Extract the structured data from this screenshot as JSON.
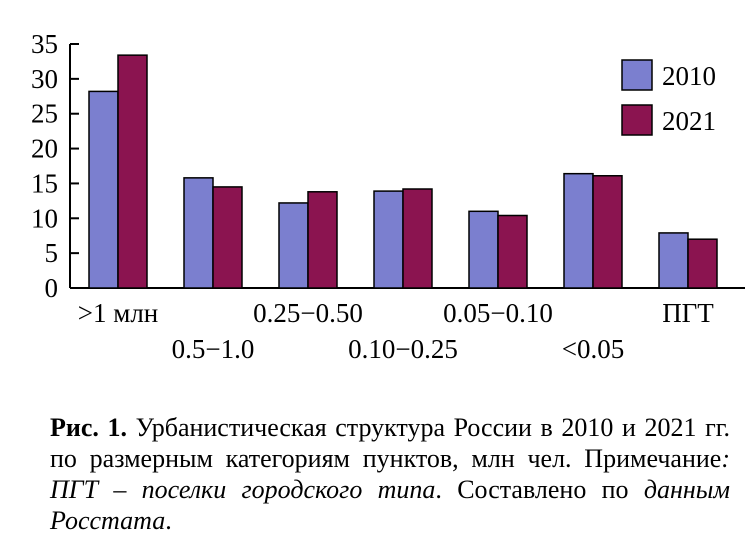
{
  "chart_data": {
    "type": "bar",
    "categories": [
      ">1 млн",
      "0.5−1.0",
      "0.25−0.50",
      "0.10−0.25",
      "0.05−0.10",
      "<0.05",
      "ПГТ"
    ],
    "series": [
      {
        "name": "2010",
        "values": [
          28.2,
          15.8,
          12.2,
          13.9,
          11.0,
          16.4,
          7.9
        ],
        "color": "#7b7fcf"
      },
      {
        "name": "2021",
        "values": [
          33.4,
          14.5,
          13.8,
          14.2,
          10.4,
          16.1,
          7.0
        ],
        "color": "#8b1450"
      }
    ],
    "yticks": [
      0,
      5,
      10,
      15,
      20,
      25,
      30,
      35
    ],
    "ylim": [
      0,
      35
    ],
    "legend_position": "top-right",
    "label_rows": [
      "top",
      "bottom",
      "top",
      "bottom",
      "top",
      "bottom",
      "top"
    ]
  },
  "caption": {
    "fig_label": "Рис. 1.",
    "main_text": " Урбанистическая структура России в 2010 и 2021 гг. по размерным категориям пунктов, млн чел.",
    "note_label": " Примечание",
    "note_colon": ": ",
    "note_italic": "ПГТ – поселки городского типа",
    "note_rest": ". Составлено по ",
    "source_italic": "данным Росстата",
    "end": "."
  }
}
